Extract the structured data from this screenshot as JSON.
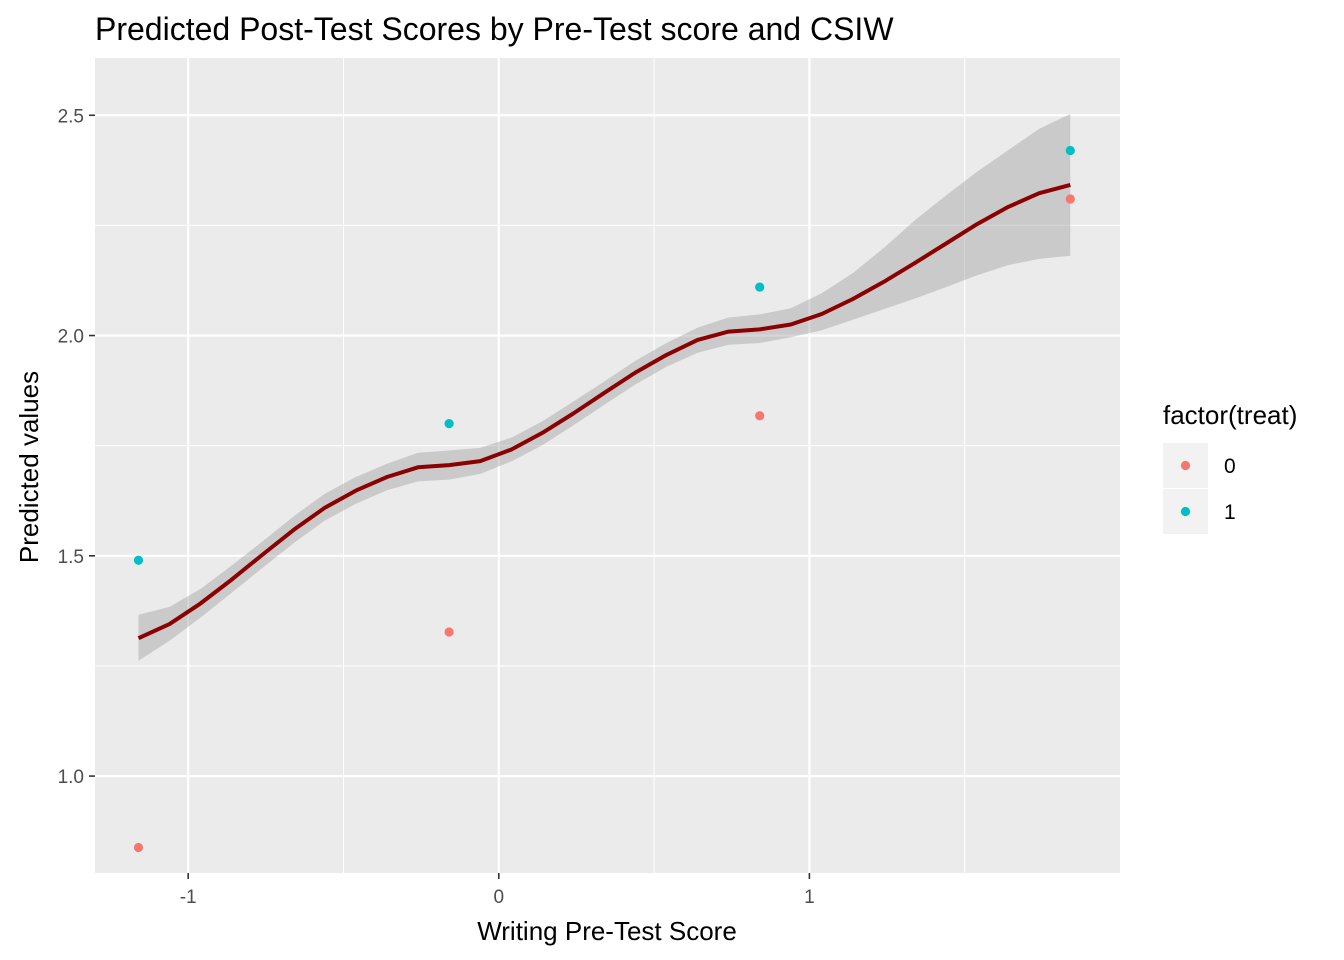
{
  "chart_data": {
    "type": "scatter",
    "title": "Predicted Post-Test Scores by Pre-Test score and CSIW",
    "xlabel": "Writing Pre-Test Score",
    "ylabel": "Predicted values",
    "xlim": [
      -1.3,
      2.0
    ],
    "ylim": [
      0.78,
      2.63
    ],
    "x_ticks": [
      -1,
      0,
      1
    ],
    "x_tick_labels": [
      "-1",
      "0",
      "1"
    ],
    "y_ticks": [
      1.0,
      1.5,
      2.0,
      2.5
    ],
    "y_tick_labels": [
      "1.0",
      "1.5",
      "2.0",
      "2.5"
    ],
    "grid": true,
    "legend": {
      "title": "factor(treat)",
      "position": "right"
    },
    "series": [
      {
        "name": "0",
        "color": "#F8766D",
        "x": [
          -1.16,
          -0.16,
          0.84,
          1.84
        ],
        "y": [
          0.838,
          1.327,
          1.818,
          2.31
        ]
      },
      {
        "name": "1",
        "color": "#00BFC4",
        "x": [
          -1.16,
          -0.16,
          0.84,
          1.84
        ],
        "y": [
          1.49,
          1.8,
          2.11,
          2.42
        ]
      }
    ],
    "smooth": {
      "method": "loess",
      "color": "#8B0000",
      "band_color": "#999999",
      "points": [
        {
          "x": -1.16,
          "y": 1.313,
          "lo": 1.262,
          "hi": 1.366
        },
        {
          "x": -1.06,
          "y": 1.345,
          "lo": 1.307,
          "hi": 1.384
        },
        {
          "x": -0.96,
          "y": 1.392,
          "lo": 1.36,
          "hi": 1.425
        },
        {
          "x": -0.86,
          "y": 1.446,
          "lo": 1.416,
          "hi": 1.478
        },
        {
          "x": -0.76,
          "y": 1.503,
          "lo": 1.473,
          "hi": 1.533
        },
        {
          "x": -0.66,
          "y": 1.559,
          "lo": 1.529,
          "hi": 1.59
        },
        {
          "x": -0.56,
          "y": 1.609,
          "lo": 1.58,
          "hi": 1.641
        },
        {
          "x": -0.46,
          "y": 1.648,
          "lo": 1.618,
          "hi": 1.679
        },
        {
          "x": -0.36,
          "y": 1.679,
          "lo": 1.649,
          "hi": 1.709
        },
        {
          "x": -0.26,
          "y": 1.701,
          "lo": 1.669,
          "hi": 1.734
        },
        {
          "x": -0.16,
          "y": 1.706,
          "lo": 1.673,
          "hi": 1.739
        },
        {
          "x": -0.06,
          "y": 1.715,
          "lo": 1.686,
          "hi": 1.745
        },
        {
          "x": 0.04,
          "y": 1.741,
          "lo": 1.714,
          "hi": 1.768
        },
        {
          "x": 0.14,
          "y": 1.779,
          "lo": 1.751,
          "hi": 1.805
        },
        {
          "x": 0.24,
          "y": 1.823,
          "lo": 1.796,
          "hi": 1.85
        },
        {
          "x": 0.34,
          "y": 1.87,
          "lo": 1.843,
          "hi": 1.896
        },
        {
          "x": 0.44,
          "y": 1.916,
          "lo": 1.889,
          "hi": 1.943
        },
        {
          "x": 0.54,
          "y": 1.956,
          "lo": 1.929,
          "hi": 1.983
        },
        {
          "x": 0.64,
          "y": 1.99,
          "lo": 1.961,
          "hi": 2.018
        },
        {
          "x": 0.74,
          "y": 2.009,
          "lo": 1.979,
          "hi": 2.041
        },
        {
          "x": 0.84,
          "y": 2.014,
          "lo": 1.983,
          "hi": 2.048
        },
        {
          "x": 0.94,
          "y": 2.025,
          "lo": 1.996,
          "hi": 2.062
        },
        {
          "x": 1.04,
          "y": 2.049,
          "lo": 2.012,
          "hi": 2.096
        },
        {
          "x": 1.14,
          "y": 2.083,
          "lo": 2.036,
          "hi": 2.142
        },
        {
          "x": 1.24,
          "y": 2.122,
          "lo": 2.06,
          "hi": 2.199
        },
        {
          "x": 1.34,
          "y": 2.165,
          "lo": 2.084,
          "hi": 2.262
        },
        {
          "x": 1.44,
          "y": 2.209,
          "lo": 2.11,
          "hi": 2.318
        },
        {
          "x": 1.54,
          "y": 2.253,
          "lo": 2.137,
          "hi": 2.372
        },
        {
          "x": 1.64,
          "y": 2.292,
          "lo": 2.16,
          "hi": 2.421
        },
        {
          "x": 1.74,
          "y": 2.323,
          "lo": 2.174,
          "hi": 2.469
        },
        {
          "x": 1.84,
          "y": 2.342,
          "lo": 2.181,
          "hi": 2.503
        }
      ]
    }
  }
}
